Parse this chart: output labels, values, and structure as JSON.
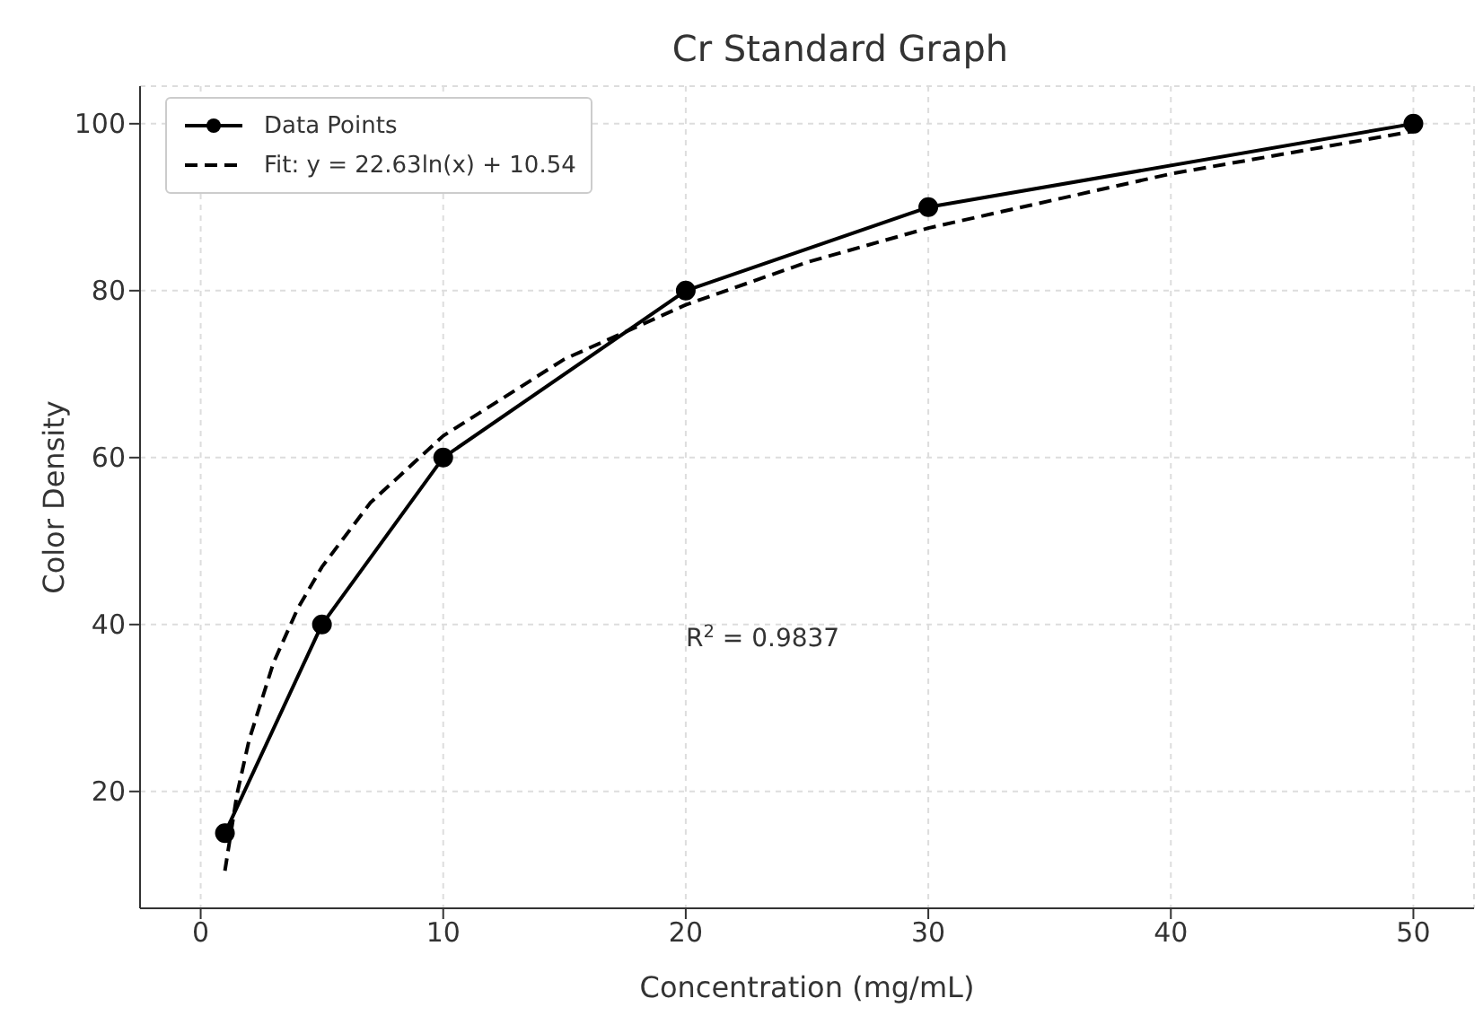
{
  "chart_data": {
    "type": "line",
    "title": "Cr Standard Graph",
    "xlabel": "Concentration (mg/mL)",
    "ylabel": "Color Density",
    "xlim": [
      -2.5,
      52.5
    ],
    "xticks": [
      0,
      10,
      20,
      30,
      40,
      50
    ],
    "ylim": [
      6,
      104.5
    ],
    "yticks": [
      20,
      40,
      60,
      80,
      100
    ],
    "grid": true,
    "legend": "top left",
    "annotations": [
      "R$^{2}$ = 0.9837"
    ],
    "series": [
      {
        "name": "Data Points",
        "color": "#000000",
        "x": [
          1,
          5,
          10,
          20,
          30,
          50
        ],
        "values": [
          15,
          40,
          60,
          80,
          90,
          100
        ],
        "marker": "circle",
        "line_style": "solid"
      },
      {
        "name": "Fit: y = 22.63ln(x) + 10.54",
        "color": "#000000",
        "x": [
          1,
          1.5,
          2,
          3,
          4,
          5,
          7,
          10,
          15,
          20,
          25,
          30,
          40,
          50
        ],
        "values": [
          10.5,
          19.7,
          26.2,
          35.4,
          41.9,
          46.9,
          54.6,
          62.6,
          71.8,
          78.3,
          83.4,
          87.5,
          94.0,
          99.1
        ],
        "marker": "none",
        "line_style": "dashed"
      }
    ]
  }
}
